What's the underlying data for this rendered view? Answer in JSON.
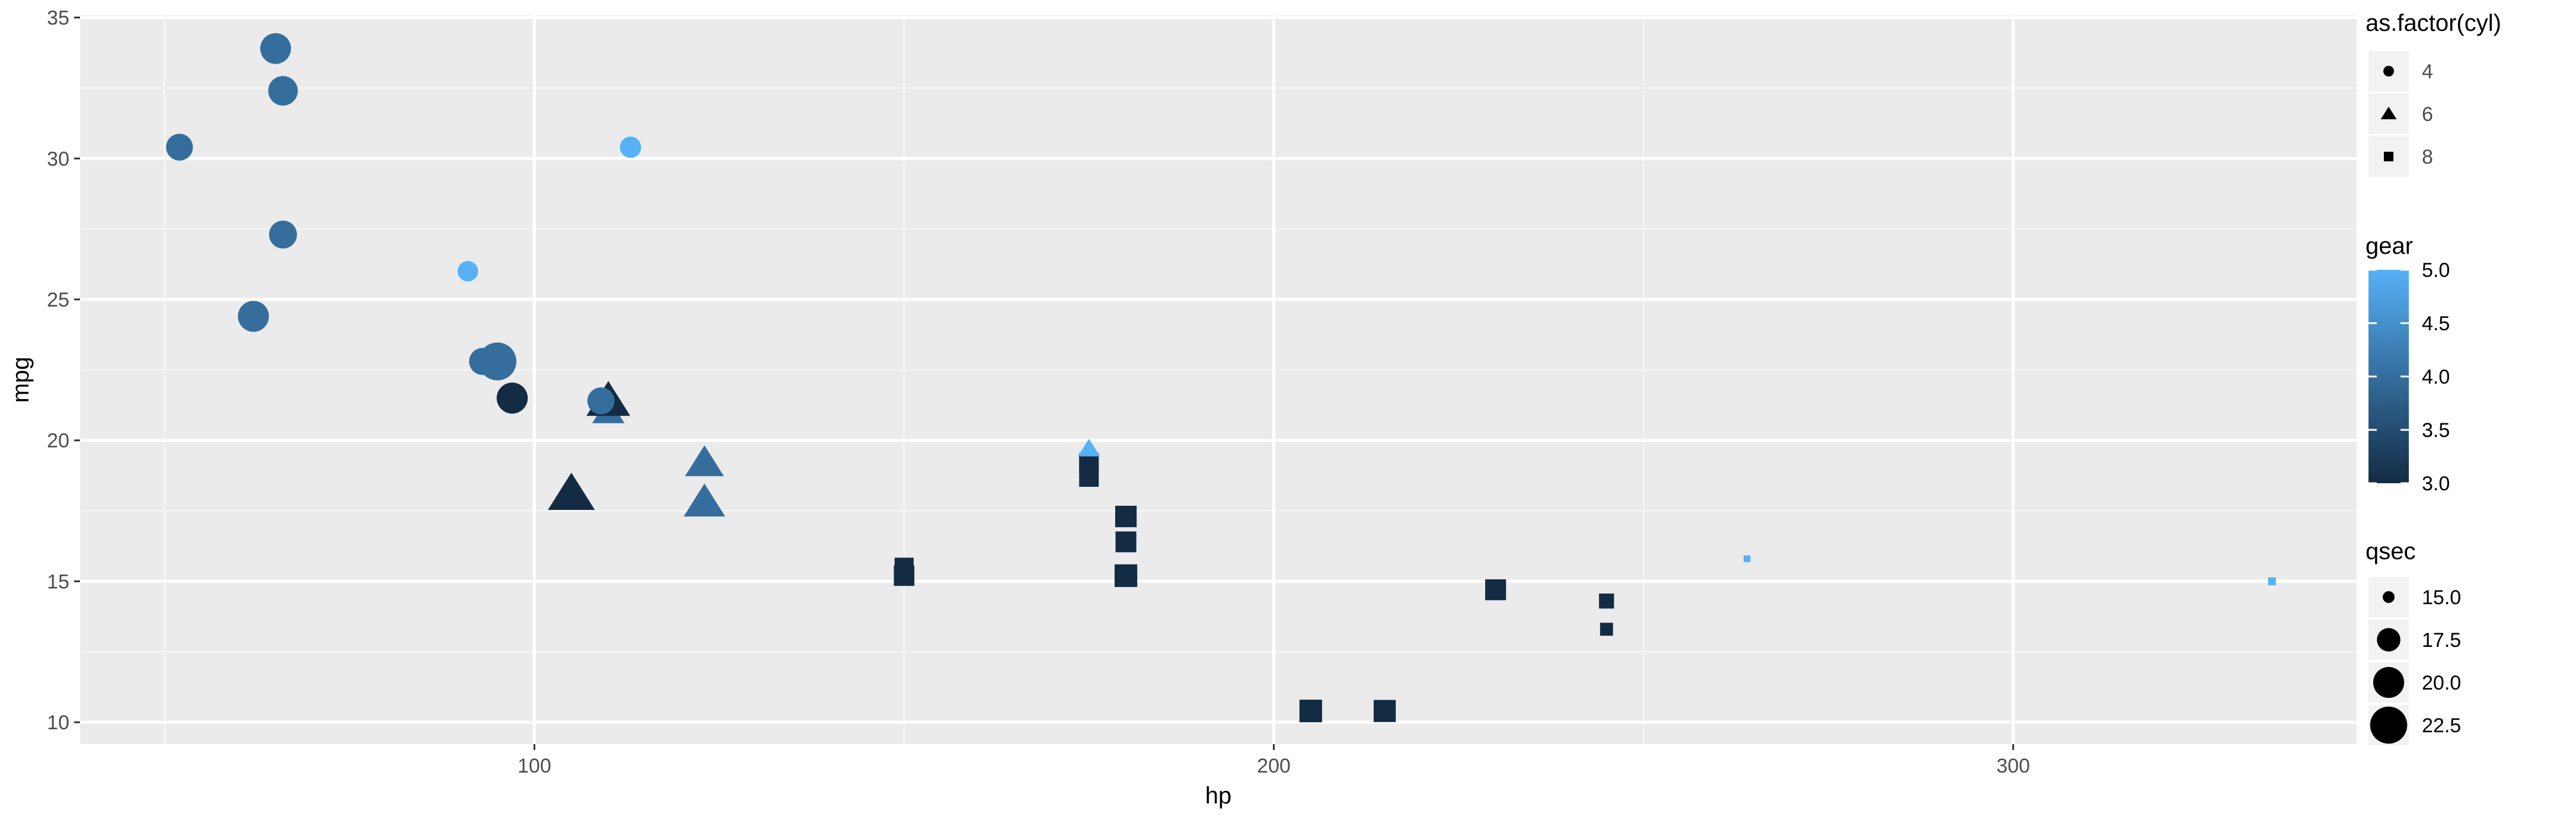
{
  "chart_data": {
    "type": "scatter",
    "xlabel": "hp",
    "ylabel": "mpg",
    "xlim": [
      38.55,
      346.45
    ],
    "ylim": [
      9.225,
      35.075
    ],
    "x_ticks": [
      100,
      200,
      300
    ],
    "y_ticks": [
      10,
      15,
      20,
      25,
      30,
      35
    ],
    "grid": true,
    "legend_position": "right",
    "colors": {
      "panel_background": "#ebebeb",
      "grid_major": "#ffffff",
      "grid_minor": "#f5f5f5",
      "gear_low": "#132b43",
      "gear_high": "#56b1f7"
    },
    "points": [
      {
        "hp": 110,
        "mpg": 21.0,
        "cyl": 6,
        "gear": 4,
        "qsec": 16.46
      },
      {
        "hp": 110,
        "mpg": 21.0,
        "cyl": 6,
        "gear": 4,
        "qsec": 17.02
      },
      {
        "hp": 93,
        "mpg": 22.8,
        "cyl": 4,
        "gear": 4,
        "qsec": 18.61
      },
      {
        "hp": 110,
        "mpg": 21.4,
        "cyl": 6,
        "gear": 3,
        "qsec": 19.44
      },
      {
        "hp": 175,
        "mpg": 18.7,
        "cyl": 8,
        "gear": 3,
        "qsec": 17.02
      },
      {
        "hp": 105,
        "mpg": 18.1,
        "cyl": 6,
        "gear": 3,
        "qsec": 20.22
      },
      {
        "hp": 245,
        "mpg": 14.3,
        "cyl": 8,
        "gear": 3,
        "qsec": 15.84
      },
      {
        "hp": 62,
        "mpg": 24.4,
        "cyl": 4,
        "gear": 4,
        "qsec": 20.0
      },
      {
        "hp": 95,
        "mpg": 22.8,
        "cyl": 4,
        "gear": 4,
        "qsec": 22.9
      },
      {
        "hp": 123,
        "mpg": 19.2,
        "cyl": 6,
        "gear": 4,
        "qsec": 18.3
      },
      {
        "hp": 123,
        "mpg": 17.8,
        "cyl": 6,
        "gear": 4,
        "qsec": 18.9
      },
      {
        "hp": 180,
        "mpg": 16.4,
        "cyl": 8,
        "gear": 3,
        "qsec": 17.4
      },
      {
        "hp": 180,
        "mpg": 17.3,
        "cyl": 8,
        "gear": 3,
        "qsec": 17.6
      },
      {
        "hp": 180,
        "mpg": 15.2,
        "cyl": 8,
        "gear": 3,
        "qsec": 18.0
      },
      {
        "hp": 205,
        "mpg": 10.4,
        "cyl": 8,
        "gear": 3,
        "qsec": 17.98
      },
      {
        "hp": 215,
        "mpg": 10.4,
        "cyl": 8,
        "gear": 3,
        "qsec": 17.82
      },
      {
        "hp": 230,
        "mpg": 14.7,
        "cyl": 8,
        "gear": 3,
        "qsec": 17.42
      },
      {
        "hp": 66,
        "mpg": 32.4,
        "cyl": 4,
        "gear": 4,
        "qsec": 19.47
      },
      {
        "hp": 52,
        "mpg": 30.4,
        "cyl": 4,
        "gear": 4,
        "qsec": 18.52
      },
      {
        "hp": 65,
        "mpg": 33.9,
        "cyl": 4,
        "gear": 4,
        "qsec": 19.9
      },
      {
        "hp": 97,
        "mpg": 21.5,
        "cyl": 4,
        "gear": 3,
        "qsec": 20.01
      },
      {
        "hp": 150,
        "mpg": 15.5,
        "cyl": 8,
        "gear": 3,
        "qsec": 16.87
      },
      {
        "hp": 150,
        "mpg": 15.2,
        "cyl": 8,
        "gear": 3,
        "qsec": 17.3
      },
      {
        "hp": 245,
        "mpg": 13.3,
        "cyl": 8,
        "gear": 3,
        "qsec": 15.41
      },
      {
        "hp": 175,
        "mpg": 19.2,
        "cyl": 8,
        "gear": 3,
        "qsec": 17.05
      },
      {
        "hp": 66,
        "mpg": 27.3,
        "cyl": 4,
        "gear": 4,
        "qsec": 18.9
      },
      {
        "hp": 91,
        "mpg": 26.0,
        "cyl": 4,
        "gear": 5,
        "qsec": 16.7
      },
      {
        "hp": 113,
        "mpg": 30.4,
        "cyl": 4,
        "gear": 5,
        "qsec": 16.9
      },
      {
        "hp": 264,
        "mpg": 15.8,
        "cyl": 8,
        "gear": 5,
        "qsec": 14.5
      },
      {
        "hp": 175,
        "mpg": 19.7,
        "cyl": 6,
        "gear": 5,
        "qsec": 15.5
      },
      {
        "hp": 335,
        "mpg": 15.0,
        "cyl": 8,
        "gear": 5,
        "qsec": 14.6
      },
      {
        "hp": 109,
        "mpg": 21.4,
        "cyl": 4,
        "gear": 4,
        "qsec": 18.6
      }
    ],
    "legends": {
      "shape": {
        "title": "as.factor(cyl)",
        "labels": [
          "4",
          "6",
          "8"
        ],
        "shapes": [
          "circle",
          "triangle",
          "square"
        ]
      },
      "color": {
        "title": "gear",
        "labels": [
          "5.0",
          "4.5",
          "4.0",
          "3.5",
          "3.0"
        ],
        "values": [
          5.0,
          4.5,
          4.0,
          3.5,
          3.0
        ],
        "range": [
          3,
          5
        ]
      },
      "size": {
        "title": "qsec",
        "labels": [
          "15.0",
          "17.5",
          "20.0",
          "22.5"
        ],
        "values": [
          15.0,
          17.5,
          20.0,
          22.5
        ],
        "range": [
          14.5,
          22.9
        ]
      }
    }
  }
}
